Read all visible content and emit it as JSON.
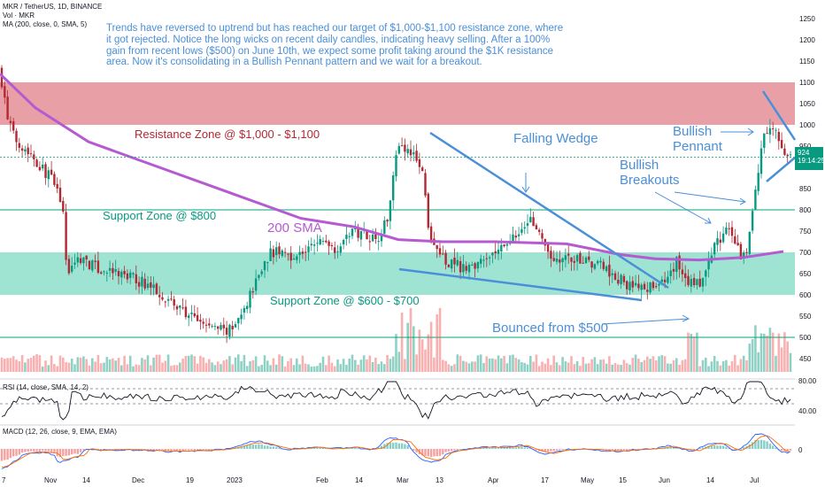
{
  "header": {
    "symbol": "MKR / TetherUS, 1D, BINANCE",
    "vol": "Vol · MKR",
    "ma": "MA (200, close, 0, SMA, 5)",
    "rsi": "RSI (14, close, SMA, 14, 2)",
    "macd": "MACD (12, 26, close, 9, EMA, EMA)"
  },
  "note": "Trends have reversed to uptrend but has reached our target of $1,000-$1,100 resistance zone, where it got rejected. Notice the long wicks on recent daily candles, indicating heavy selling. After a 100% gain from recent lows ($500) on June 10th, we expect some profit taking around the $1K resistance area. Now it's consolidating in a Bullish Pennant pattern and we wait for a breakout.",
  "annotations": {
    "resistance": "Resistance Zone @ $1,000 - $1,100",
    "support800": "Support Zone @ $800",
    "sma200": "200 SMA",
    "support600": "Support Zone @ $600 - $700",
    "falling_wedge": "Falling Wedge",
    "bullish_breakouts": [
      "Bullish",
      "Breakouts"
    ],
    "bullish_pennant": [
      "Bullish",
      "Pennant"
    ],
    "bounced": "Bounced from $500"
  },
  "last_price": {
    "value": "924",
    "time": "19:14:25"
  },
  "colors": {
    "up": "#089981",
    "down": "#b22833",
    "sma": "#b55ad0",
    "resistance_zone": "#e8a0a6",
    "support_zone": "#9fe3d3",
    "annotation_blue": "#4a8fd9",
    "annotation_red": "#b22833",
    "annotation_green": "#089981"
  },
  "chart_data": [
    {
      "type": "candlestick",
      "title": "MKR / TetherUS, 1D, BINANCE",
      "x_tick_labels": [
        "7",
        "Nov",
        "14",
        "Dec",
        "19",
        "2023",
        "Feb",
        "14",
        "Mar",
        "13",
        "Apr",
        "17",
        "May",
        "15",
        "Jun",
        "14",
        "Jul"
      ],
      "y_tick_labels": [
        "1250",
        "1200",
        "1150",
        "1100",
        "1050",
        "1000",
        "950",
        "900",
        "850",
        "800",
        "750",
        "700",
        "650",
        "600",
        "550",
        "500",
        "450"
      ],
      "ylim": [
        425,
        1260
      ],
      "zones": [
        {
          "name": "Resistance Zone",
          "from": 1000,
          "to": 1100
        },
        {
          "name": "Support Zone @ $800",
          "level": 800
        },
        {
          "name": "Support Zone",
          "from": 600,
          "to": 700
        },
        {
          "name": "Bounced from $500",
          "level": 500
        }
      ],
      "close_path": [
        [
          0,
          1130
        ],
        [
          8,
          1020
        ],
        [
          16,
          970
        ],
        [
          26,
          950
        ],
        [
          36,
          930
        ],
        [
          46,
          900
        ],
        [
          56,
          880
        ],
        [
          70,
          820
        ],
        [
          76,
          650
        ],
        [
          90,
          690
        ],
        [
          110,
          660
        ],
        [
          130,
          650
        ],
        [
          150,
          640
        ],
        [
          170,
          620
        ],
        [
          185,
          600
        ],
        [
          200,
          570
        ],
        [
          215,
          550
        ],
        [
          230,
          530
        ],
        [
          248,
          520
        ],
        [
          262,
          515
        ],
        [
          275,
          560
        ],
        [
          290,
          640
        ],
        [
          305,
          700
        ],
        [
          320,
          700
        ],
        [
          335,
          690
        ],
        [
          350,
          710
        ],
        [
          365,
          730
        ],
        [
          380,
          710
        ],
        [
          395,
          745
        ],
        [
          410,
          750
        ],
        [
          425,
          730
        ],
        [
          438,
          780
        ],
        [
          448,
          950
        ],
        [
          458,
          940
        ],
        [
          468,
          940
        ],
        [
          478,
          880
        ],
        [
          484,
          760
        ],
        [
          494,
          700
        ],
        [
          504,
          680
        ],
        [
          514,
          670
        ],
        [
          530,
          660
        ],
        [
          546,
          690
        ],
        [
          560,
          700
        ],
        [
          575,
          720
        ],
        [
          588,
          750
        ],
        [
          600,
          790
        ],
        [
          612,
          720
        ],
        [
          622,
          690
        ],
        [
          640,
          680
        ],
        [
          660,
          680
        ],
        [
          680,
          670
        ],
        [
          695,
          640
        ],
        [
          710,
          625
        ],
        [
          725,
          620
        ],
        [
          740,
          620
        ],
        [
          755,
          640
        ],
        [
          765,
          680
        ],
        [
          775,
          640
        ],
        [
          785,
          620
        ],
        [
          795,
          640
        ],
        [
          805,
          700
        ],
        [
          815,
          740
        ],
        [
          825,
          750
        ],
        [
          835,
          700
        ],
        [
          842,
          690
        ],
        [
          848,
          780
        ],
        [
          855,
          860
        ],
        [
          862,
          980
        ],
        [
          870,
          990
        ],
        [
          878,
          980
        ],
        [
          886,
          940
        ],
        [
          892,
          924
        ]
      ],
      "series": [
        {
          "name": "MA (200, close, 0, SMA, 5)",
          "points": [
            [
              0,
              1120
            ],
            [
              40,
              1040
            ],
            [
              100,
              960
            ],
            [
              180,
              900
            ],
            [
              260,
              840
            ],
            [
              340,
              780
            ],
            [
              400,
              760
            ],
            [
              450,
              730
            ],
            [
              500,
              725
            ],
            [
              560,
              725
            ],
            [
              640,
              720
            ],
            [
              700,
              695
            ],
            [
              740,
              685
            ],
            [
              790,
              682
            ],
            [
              840,
              688
            ],
            [
              885,
              702
            ]
          ]
        }
      ],
      "last_price": 924
    },
    {
      "type": "bar",
      "title": "Vol · MKR"
    },
    {
      "type": "line",
      "title": "RSI (14, close, SMA, 14, 2)",
      "y_tick_labels": [
        "80.00",
        "40.00"
      ]
    },
    {
      "type": "line",
      "title": "MACD (12, 26, close, 9, EMA, EMA)",
      "y_tick_labels": [
        "0"
      ]
    }
  ]
}
